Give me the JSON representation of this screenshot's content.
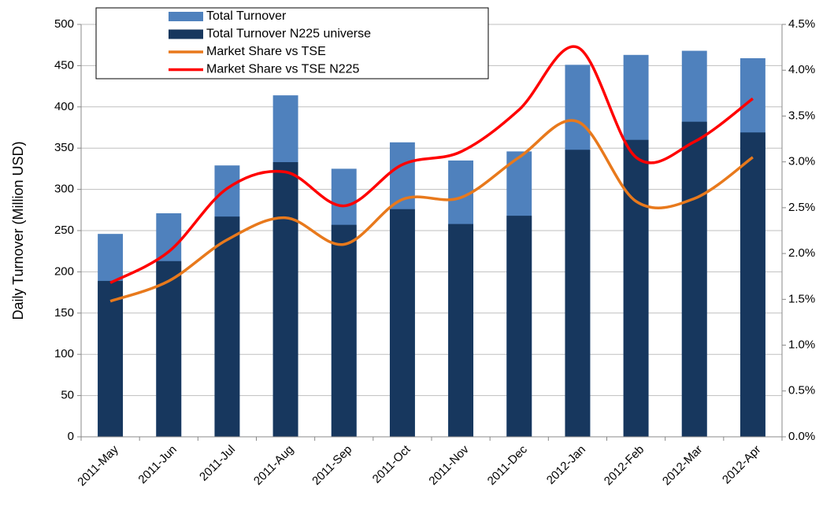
{
  "chart_data": {
    "type": "bar",
    "ylabel": "Daily Turnover (Million USD)",
    "categories": [
      "2011-May",
      "2011-Jun",
      "2011-Jul",
      "2011-Aug",
      "2011-Sep",
      "2011-Oct",
      "2011-Nov",
      "2011-Dec",
      "2012-Jan",
      "2012-Feb",
      "2012-Mar",
      "2012-Apr"
    ],
    "series": [
      {
        "name": "Total Turnover",
        "type": "bar",
        "color": "#4f81bd",
        "values": [
          246,
          271,
          329,
          414,
          325,
          357,
          335,
          346,
          451,
          463,
          468,
          459
        ]
      },
      {
        "name": "Total Turnover N225 universe",
        "type": "bar",
        "color": "#17375e",
        "values": [
          189,
          213,
          267,
          333,
          257,
          276,
          258,
          268,
          348,
          360,
          382,
          369
        ]
      },
      {
        "name": "Market Share vs TSE",
        "type": "line",
        "axis": "y2",
        "color": "#e8791c",
        "values": [
          1.48,
          1.7,
          2.15,
          2.39,
          2.1,
          2.59,
          2.61,
          3.05,
          3.44,
          2.57,
          2.6,
          3.05
        ]
      },
      {
        "name": "Market Share vs TSE N225",
        "type": "line",
        "axis": "y2",
        "color": "#ff0000",
        "values": [
          1.68,
          2.02,
          2.71,
          2.89,
          2.52,
          2.97,
          3.11,
          3.57,
          4.25,
          3.05,
          3.22,
          3.69
        ]
      }
    ],
    "ylim": [
      0,
      500
    ],
    "yticks": [
      0,
      50,
      100,
      150,
      200,
      250,
      300,
      350,
      400,
      450,
      500
    ],
    "y2lim": [
      0,
      4.5
    ],
    "y2ticks": [
      {
        "value": 0,
        "label": "0.0%"
      },
      {
        "value": 0.5,
        "label": "0.5%"
      },
      {
        "value": 1,
        "label": "1.0%"
      },
      {
        "value": 1.5,
        "label": "1.5%"
      },
      {
        "value": 2,
        "label": "2.0%"
      },
      {
        "value": 2.5,
        "label": "2.5%"
      },
      {
        "value": 3,
        "label": "3.0%"
      },
      {
        "value": 3.5,
        "label": "3.5%"
      },
      {
        "value": 4,
        "label": "4.0%"
      },
      {
        "value": 4.5,
        "label": "4.5%"
      }
    ],
    "grid": true,
    "legend": "upper left",
    "bars_overlap": true
  }
}
